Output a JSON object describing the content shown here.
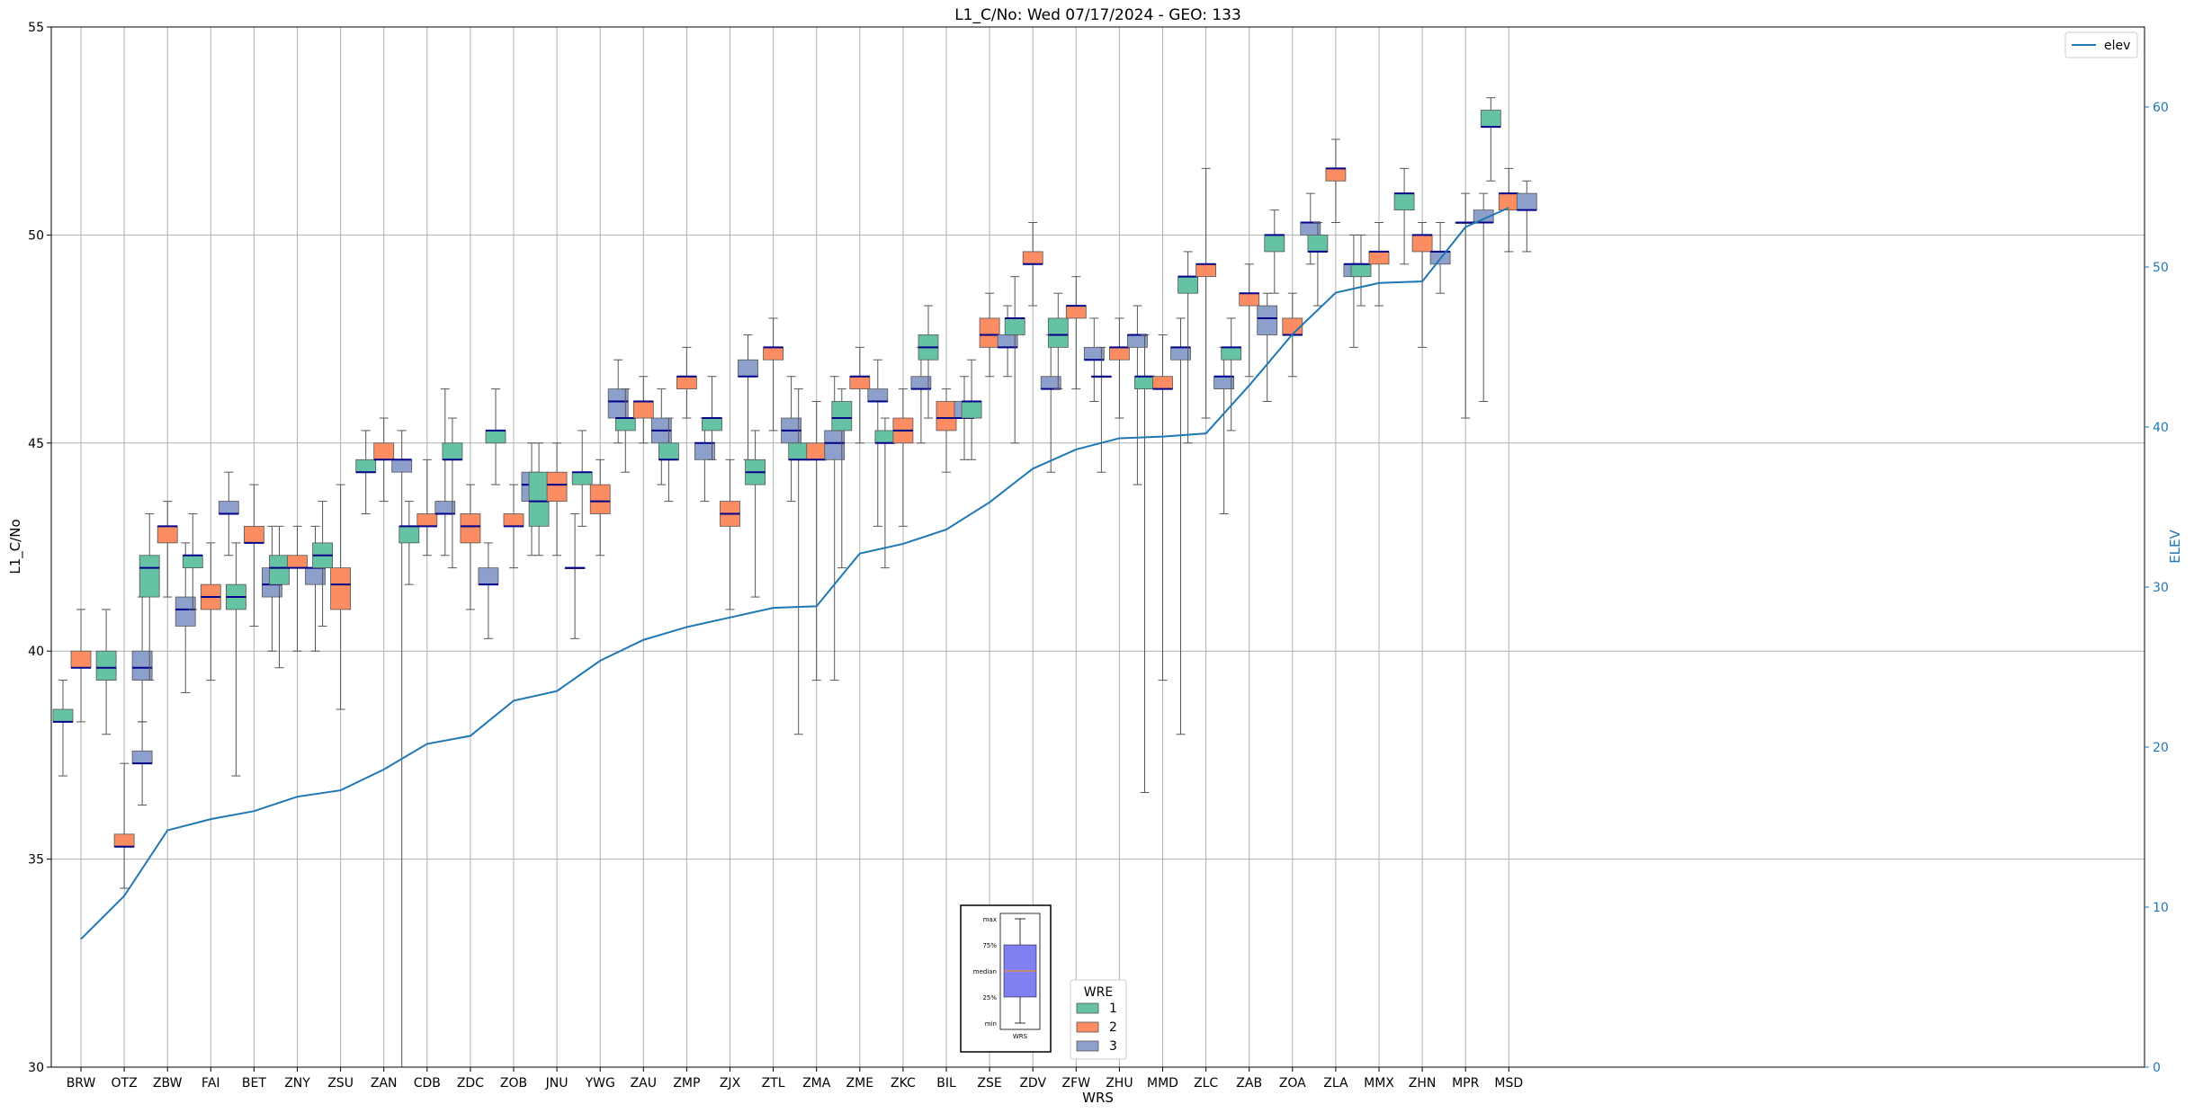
{
  "chart_data": {
    "type": "box",
    "title": "L1_C/No: Wed 07/17/2024 - GEO: 133",
    "xlabel": "WRS",
    "ylabel": "L1_C/No",
    "y2label": "ELEV",
    "ylim": [
      30,
      55
    ],
    "y2lim": [
      0,
      65
    ],
    "yticks": [
      30,
      35,
      40,
      45,
      50,
      55
    ],
    "y2ticks": [
      0,
      10,
      20,
      30,
      40,
      50,
      60
    ],
    "grid": true,
    "categories": [
      "BRW",
      "OTZ",
      "ZBW",
      "FAI",
      "BET",
      "ZNY",
      "ZSU",
      "ZAN",
      "CDB",
      "ZDC",
      "ZOB",
      "JNU",
      "YWG",
      "ZAU",
      "ZMP",
      "ZJX",
      "ZTL",
      "ZMA",
      "ZME",
      "ZKC",
      "BIL",
      "ZSE",
      "ZDV",
      "ZFW",
      "ZHU",
      "MMD",
      "ZLC",
      "ZAB",
      "ZOA",
      "ZLA",
      "MMX",
      "ZHN",
      "MPR",
      "MSD"
    ],
    "wre_legend": {
      "title": "WRE",
      "entries": [
        "1",
        "2",
        "3"
      ],
      "placement": "lower-center"
    },
    "line_legend": {
      "entries": [
        "elev"
      ],
      "placement": "upper-right"
    },
    "colors": {
      "wre1": "#66c2a5",
      "wre2": "#fc8d62",
      "wre3": "#8da0cb",
      "elev": "#1f77b4",
      "median": "#00008b",
      "whisker": "#555555",
      "grid": "#b0b0b0",
      "key_box": "#8080f0"
    },
    "box_key": {
      "labels": [
        "max",
        "75%",
        "median",
        "25%",
        "min"
      ],
      "xlabel": "WRS"
    },
    "elev": [
      8,
      10.7,
      14.8,
      15.5,
      16,
      16.9,
      17.3,
      18.6,
      20.2,
      20.7,
      22.9,
      23.5,
      25.4,
      26.7,
      27.5,
      28.1,
      28.7,
      28.8,
      32.1,
      32.7,
      33.6,
      35.3,
      37.4,
      38.6,
      39.3,
      39.4,
      39.6,
      42.6,
      45.8,
      48.4,
      49,
      49.1,
      52.5,
      53.7
    ],
    "boxes": [
      {
        "station": "BRW",
        "wre": 1,
        "min": 37.0,
        "q1": 38.3,
        "median": 38.3,
        "q3": 38.6,
        "max": 39.3
      },
      {
        "station": "BRW",
        "wre": 2,
        "min": 38.3,
        "q1": 39.6,
        "median": 39.6,
        "q3": 40.0,
        "max": 41.0
      },
      {
        "station": "OTZ",
        "wre": 3,
        "min": 36.3,
        "q1": 37.3,
        "median": 37.3,
        "q3": 37.6,
        "max": 38.3
      },
      {
        "station": "OTZ",
        "wre": 1,
        "min": 38.0,
        "q1": 39.3,
        "median": 39.6,
        "q3": 40.0,
        "max": 41.0
      },
      {
        "station": "OTZ",
        "wre": 2,
        "min": 34.3,
        "q1": 35.3,
        "median": 35.3,
        "q3": 35.6,
        "max": 37.3
      },
      {
        "station": "OTZ",
        "wre": 3,
        "min": 38.3,
        "q1": 39.3,
        "median": 39.6,
        "q3": 40.0,
        "max": 41.3
      },
      {
        "station": "ZBW",
        "wre": 1,
        "min": 39.3,
        "q1": 41.3,
        "median": 42.0,
        "q3": 42.3,
        "max": 43.3
      },
      {
        "station": "ZBW",
        "wre": 2,
        "min": 41.3,
        "q1": 42.6,
        "median": 43.0,
        "q3": 43.0,
        "max": 43.6
      },
      {
        "station": "ZBW",
        "wre": 3,
        "min": 39.0,
        "q1": 40.6,
        "median": 41.0,
        "q3": 41.3,
        "max": 42.6
      },
      {
        "station": "FAI",
        "wre": 1,
        "min": 41.0,
        "q1": 42.0,
        "median": 42.3,
        "q3": 42.3,
        "max": 43.3
      },
      {
        "station": "FAI",
        "wre": 2,
        "min": 39.3,
        "q1": 41.0,
        "median": 41.3,
        "q3": 41.6,
        "max": 42.6
      },
      {
        "station": "FAI",
        "wre": 3,
        "min": 42.3,
        "q1": 43.3,
        "median": 43.3,
        "q3": 43.6,
        "max": 44.3
      },
      {
        "station": "BET",
        "wre": 1,
        "min": 37.0,
        "q1": 41.0,
        "median": 41.3,
        "q3": 41.6,
        "max": 42.6
      },
      {
        "station": "BET",
        "wre": 2,
        "min": 40.6,
        "q1": 42.6,
        "median": 42.6,
        "q3": 43.0,
        "max": 44.0
      },
      {
        "station": "BET",
        "wre": 3,
        "min": 40.0,
        "q1": 41.3,
        "median": 41.6,
        "q3": 42.0,
        "max": 43.0
      },
      {
        "station": "ZNY",
        "wre": 1,
        "min": 39.6,
        "q1": 41.6,
        "median": 42.0,
        "q3": 42.3,
        "max": 43.0
      },
      {
        "station": "ZNY",
        "wre": 2,
        "min": 40.0,
        "q1": 42.0,
        "median": 42.0,
        "q3": 42.3,
        "max": 43.0
      },
      {
        "station": "ZNY",
        "wre": 3,
        "min": 40.0,
        "q1": 41.6,
        "median": 42.0,
        "q3": 42.0,
        "max": 43.0
      },
      {
        "station": "ZSU",
        "wre": 1,
        "min": 40.6,
        "q1": 42.0,
        "median": 42.3,
        "q3": 42.6,
        "max": 43.6
      },
      {
        "station": "ZSU",
        "wre": 2,
        "min": 38.6,
        "q1": 41.0,
        "median": 41.6,
        "q3": 42.0,
        "max": 44.0
      },
      {
        "station": "ZAN",
        "wre": 1,
        "min": 43.3,
        "q1": 44.3,
        "median": 44.3,
        "q3": 44.6,
        "max": 45.3
      },
      {
        "station": "ZAN",
        "wre": 2,
        "min": 43.6,
        "q1": 44.6,
        "median": 44.6,
        "q3": 45.0,
        "max": 45.6
      },
      {
        "station": "ZAN",
        "wre": 3,
        "min": 30.0,
        "q1": 44.3,
        "median": 44.6,
        "q3": 44.6,
        "max": 45.3
      },
      {
        "station": "CDB",
        "wre": 1,
        "min": 41.6,
        "q1": 42.6,
        "median": 43.0,
        "q3": 43.0,
        "max": 43.6
      },
      {
        "station": "CDB",
        "wre": 2,
        "min": 42.3,
        "q1": 43.0,
        "median": 43.0,
        "q3": 43.3,
        "max": 44.6
      },
      {
        "station": "CDB",
        "wre": 3,
        "min": 42.3,
        "q1": 43.3,
        "median": 43.3,
        "q3": 43.6,
        "max": 46.3
      },
      {
        "station": "ZDC",
        "wre": 1,
        "min": 42.0,
        "q1": 44.6,
        "median": 44.6,
        "q3": 45.0,
        "max": 45.6
      },
      {
        "station": "ZDC",
        "wre": 2,
        "min": 41.0,
        "q1": 42.6,
        "median": 43.0,
        "q3": 43.3,
        "max": 44.0
      },
      {
        "station": "ZDC",
        "wre": 3,
        "min": 40.3,
        "q1": 41.6,
        "median": 41.6,
        "q3": 42.0,
        "max": 42.6
      },
      {
        "station": "ZOB",
        "wre": 1,
        "min": 44.0,
        "q1": 45.0,
        "median": 45.3,
        "q3": 45.3,
        "max": 46.3
      },
      {
        "station": "ZOB",
        "wre": 2,
        "min": 42.0,
        "q1": 43.0,
        "median": 43.0,
        "q3": 43.3,
        "max": 44.0
      },
      {
        "station": "ZOB",
        "wre": 3,
        "min": 42.3,
        "q1": 43.6,
        "median": 44.0,
        "q3": 44.3,
        "max": 45.0
      },
      {
        "station": "JNU",
        "wre": 1,
        "min": 42.3,
        "q1": 43.0,
        "median": 43.6,
        "q3": 44.3,
        "max": 45.0
      },
      {
        "station": "JNU",
        "wre": 2,
        "min": 42.3,
        "q1": 43.6,
        "median": 44.0,
        "q3": 44.3,
        "max": 45.0
      },
      {
        "station": "JNU",
        "wre": 3,
        "min": 40.3,
        "q1": 42.0,
        "median": 42.0,
        "q3": 42.0,
        "max": 43.3
      },
      {
        "station": "YWG",
        "wre": 1,
        "min": 43.0,
        "q1": 44.0,
        "median": 44.3,
        "q3": 44.3,
        "max": 45.3
      },
      {
        "station": "YWG",
        "wre": 2,
        "min": 42.3,
        "q1": 43.3,
        "median": 43.6,
        "q3": 44.0,
        "max": 44.6
      },
      {
        "station": "YWG",
        "wre": 3,
        "min": 45.0,
        "q1": 45.6,
        "median": 46.0,
        "q3": 46.3,
        "max": 47.0
      },
      {
        "station": "ZAU",
        "wre": 1,
        "min": 44.3,
        "q1": 45.3,
        "median": 45.6,
        "q3": 45.6,
        "max": 46.3
      },
      {
        "station": "ZAU",
        "wre": 2,
        "min": 45.0,
        "q1": 45.6,
        "median": 46.0,
        "q3": 46.0,
        "max": 46.6
      },
      {
        "station": "ZAU",
        "wre": 3,
        "min": 44.0,
        "q1": 45.0,
        "median": 45.3,
        "q3": 45.6,
        "max": 46.3
      },
      {
        "station": "ZMP",
        "wre": 1,
        "min": 43.6,
        "q1": 44.6,
        "median": 44.6,
        "q3": 45.0,
        "max": 45.6
      },
      {
        "station": "ZMP",
        "wre": 2,
        "min": 45.6,
        "q1": 46.3,
        "median": 46.6,
        "q3": 46.6,
        "max": 47.3
      },
      {
        "station": "ZMP",
        "wre": 3,
        "min": 43.6,
        "q1": 44.6,
        "median": 45.0,
        "q3": 45.0,
        "max": 45.6
      },
      {
        "station": "ZJX",
        "wre": 1,
        "min": 44.6,
        "q1": 45.3,
        "median": 45.6,
        "q3": 45.6,
        "max": 46.6
      },
      {
        "station": "ZJX",
        "wre": 2,
        "min": 41.0,
        "q1": 43.0,
        "median": 43.3,
        "q3": 43.6,
        "max": 44.6
      },
      {
        "station": "ZJX",
        "wre": 3,
        "min": 44.6,
        "q1": 46.6,
        "median": 46.6,
        "q3": 47.0,
        "max": 47.6
      },
      {
        "station": "ZTL",
        "wre": 1,
        "min": 41.3,
        "q1": 44.0,
        "median": 44.3,
        "q3": 44.6,
        "max": 45.3
      },
      {
        "station": "ZTL",
        "wre": 2,
        "min": 45.3,
        "q1": 47.0,
        "median": 47.3,
        "q3": 47.3,
        "max": 48.0
      },
      {
        "station": "ZTL",
        "wre": 3,
        "min": 43.6,
        "q1": 45.0,
        "median": 45.3,
        "q3": 45.6,
        "max": 46.6
      },
      {
        "station": "ZMA",
        "wre": 1,
        "min": 38.0,
        "q1": 44.6,
        "median": 44.6,
        "q3": 45.0,
        "max": 46.3
      },
      {
        "station": "ZMA",
        "wre": 2,
        "min": 39.3,
        "q1": 44.6,
        "median": 44.6,
        "q3": 45.0,
        "max": 46.0
      },
      {
        "station": "ZMA",
        "wre": 3,
        "min": 39.3,
        "q1": 44.6,
        "median": 45.0,
        "q3": 45.3,
        "max": 46.6
      },
      {
        "station": "ZME",
        "wre": 1,
        "min": 42.0,
        "q1": 45.3,
        "median": 45.6,
        "q3": 46.0,
        "max": 46.3
      },
      {
        "station": "ZME",
        "wre": 2,
        "min": 45.0,
        "q1": 46.3,
        "median": 46.6,
        "q3": 46.6,
        "max": 47.3
      },
      {
        "station": "ZME",
        "wre": 3,
        "min": 43.0,
        "q1": 46.0,
        "median": 46.0,
        "q3": 46.3,
        "max": 47.0
      },
      {
        "station": "ZKC",
        "wre": 1,
        "min": 42.0,
        "q1": 45.0,
        "median": 45.0,
        "q3": 45.3,
        "max": 45.6
      },
      {
        "station": "ZKC",
        "wre": 2,
        "min": 43.0,
        "q1": 45.0,
        "median": 45.3,
        "q3": 45.6,
        "max": 46.3
      },
      {
        "station": "ZKC",
        "wre": 3,
        "min": 45.0,
        "q1": 46.3,
        "median": 46.3,
        "q3": 46.6,
        "max": 47.3
      },
      {
        "station": "BIL",
        "wre": 1,
        "min": 45.6,
        "q1": 47.0,
        "median": 47.3,
        "q3": 47.6,
        "max": 48.3
      },
      {
        "station": "BIL",
        "wre": 2,
        "min": 44.3,
        "q1": 45.3,
        "median": 45.6,
        "q3": 46.0,
        "max": 46.3
      },
      {
        "station": "BIL",
        "wre": 3,
        "min": 44.6,
        "q1": 45.6,
        "median": 45.6,
        "q3": 46.0,
        "max": 46.6
      },
      {
        "station": "ZSE",
        "wre": 1,
        "min": 44.6,
        "q1": 45.6,
        "median": 46.0,
        "q3": 46.0,
        "max": 47.0
      },
      {
        "station": "ZSE",
        "wre": 2,
        "min": 46.6,
        "q1": 47.3,
        "median": 47.6,
        "q3": 48.0,
        "max": 48.6
      },
      {
        "station": "ZSE",
        "wre": 3,
        "min": 46.6,
        "q1": 47.3,
        "median": 47.3,
        "q3": 47.6,
        "max": 48.3
      },
      {
        "station": "ZDV",
        "wre": 1,
        "min": 45.0,
        "q1": 47.6,
        "median": 48.0,
        "q3": 48.0,
        "max": 49.0
      },
      {
        "station": "ZDV",
        "wre": 2,
        "min": 48.3,
        "q1": 49.3,
        "median": 49.3,
        "q3": 49.6,
        "max": 50.3
      },
      {
        "station": "ZDV",
        "wre": 3,
        "min": 44.3,
        "q1": 46.3,
        "median": 46.3,
        "q3": 46.6,
        "max": 47.6
      },
      {
        "station": "ZFW",
        "wre": 1,
        "min": 46.3,
        "q1": 47.3,
        "median": 47.6,
        "q3": 48.0,
        "max": 48.6
      },
      {
        "station": "ZFW",
        "wre": 2,
        "min": 46.3,
        "q1": 48.0,
        "median": 48.3,
        "q3": 48.3,
        "max": 49.0
      },
      {
        "station": "ZFW",
        "wre": 3,
        "min": 46.0,
        "q1": 47.0,
        "median": 47.0,
        "q3": 47.3,
        "max": 48.0
      },
      {
        "station": "ZHU",
        "wre": 1,
        "min": 44.3,
        "q1": 46.6,
        "median": 46.6,
        "q3": 46.6,
        "max": 47.3
      },
      {
        "station": "ZHU",
        "wre": 2,
        "min": 45.6,
        "q1": 47.0,
        "median": 47.3,
        "q3": 47.3,
        "max": 48.0
      },
      {
        "station": "ZHU",
        "wre": 3,
        "min": 44.0,
        "q1": 47.3,
        "median": 47.6,
        "q3": 47.6,
        "max": 48.3
      },
      {
        "station": "MMD",
        "wre": 1,
        "min": 36.6,
        "q1": 46.3,
        "median": 46.6,
        "q3": 46.6,
        "max": 47.6
      },
      {
        "station": "MMD",
        "wre": 2,
        "min": 39.3,
        "q1": 46.3,
        "median": 46.3,
        "q3": 46.6,
        "max": 47.6
      },
      {
        "station": "MMD",
        "wre": 3,
        "min": 38.0,
        "q1": 47.0,
        "median": 47.3,
        "q3": 47.3,
        "max": 48.0
      },
      {
        "station": "ZLC",
        "wre": 1,
        "min": 45.0,
        "q1": 48.6,
        "median": 49.0,
        "q3": 49.0,
        "max": 49.6
      },
      {
        "station": "ZLC",
        "wre": 2,
        "min": 45.6,
        "q1": 49.0,
        "median": 49.3,
        "q3": 49.3,
        "max": 51.6
      },
      {
        "station": "ZLC",
        "wre": 3,
        "min": 43.3,
        "q1": 46.3,
        "median": 46.6,
        "q3": 46.6,
        "max": 47.3
      },
      {
        "station": "ZAB",
        "wre": 1,
        "min": 45.3,
        "q1": 47.0,
        "median": 47.3,
        "q3": 47.3,
        "max": 48.0
      },
      {
        "station": "ZAB",
        "wre": 2,
        "min": 46.6,
        "q1": 48.3,
        "median": 48.6,
        "q3": 48.6,
        "max": 49.3
      },
      {
        "station": "ZAB",
        "wre": 3,
        "min": 46.0,
        "q1": 47.6,
        "median": 48.0,
        "q3": 48.3,
        "max": 48.6
      },
      {
        "station": "ZOA",
        "wre": 1,
        "min": 48.6,
        "q1": 49.6,
        "median": 50.0,
        "q3": 50.0,
        "max": 50.6
      },
      {
        "station": "ZOA",
        "wre": 2,
        "min": 46.6,
        "q1": 47.6,
        "median": 47.6,
        "q3": 48.0,
        "max": 48.6
      },
      {
        "station": "ZOA",
        "wre": 3,
        "min": 49.3,
        "q1": 50.0,
        "median": 50.3,
        "q3": 50.3,
        "max": 51.0
      },
      {
        "station": "ZLA",
        "wre": 1,
        "min": 48.3,
        "q1": 49.6,
        "median": 49.6,
        "q3": 50.0,
        "max": 50.3
      },
      {
        "station": "ZLA",
        "wre": 2,
        "min": 50.3,
        "q1": 51.3,
        "median": 51.6,
        "q3": 51.6,
        "max": 52.3
      },
      {
        "station": "ZLA",
        "wre": 3,
        "min": 47.3,
        "q1": 49.0,
        "median": 49.3,
        "q3": 49.3,
        "max": 50.0
      },
      {
        "station": "MMX",
        "wre": 1,
        "min": 48.3,
        "q1": 49.0,
        "median": 49.3,
        "q3": 49.3,
        "max": 50.0
      },
      {
        "station": "MMX",
        "wre": 2,
        "min": 48.3,
        "q1": 49.3,
        "median": 49.6,
        "q3": 49.6,
        "max": 50.3
      },
      {
        "station": "ZHN",
        "wre": 1,
        "min": 49.3,
        "q1": 50.6,
        "median": 51.0,
        "q3": 51.0,
        "max": 51.6
      },
      {
        "station": "ZHN",
        "wre": 2,
        "min": 47.3,
        "q1": 49.6,
        "median": 50.0,
        "q3": 50.0,
        "max": 50.3
      },
      {
        "station": "ZHN",
        "wre": 3,
        "min": 48.6,
        "q1": 49.3,
        "median": 49.6,
        "q3": 49.6,
        "max": 50.3
      },
      {
        "station": "MPR",
        "wre": 2,
        "min": 45.6,
        "q1": 50.3,
        "median": 50.3,
        "q3": 50.3,
        "max": 51.0
      },
      {
        "station": "MPR",
        "wre": 3,
        "min": 46.0,
        "q1": 50.3,
        "median": 50.3,
        "q3": 50.6,
        "max": 51.0
      },
      {
        "station": "MSD",
        "wre": 1,
        "min": 51.3,
        "q1": 52.6,
        "median": 52.6,
        "q3": 53.0,
        "max": 53.3
      },
      {
        "station": "MSD",
        "wre": 2,
        "min": 49.6,
        "q1": 50.6,
        "median": 51.0,
        "q3": 51.0,
        "max": 51.6
      },
      {
        "station": "MSD",
        "wre": 3,
        "min": 49.6,
        "q1": 50.6,
        "median": 50.6,
        "q3": 51.0,
        "max": 51.3
      }
    ]
  }
}
